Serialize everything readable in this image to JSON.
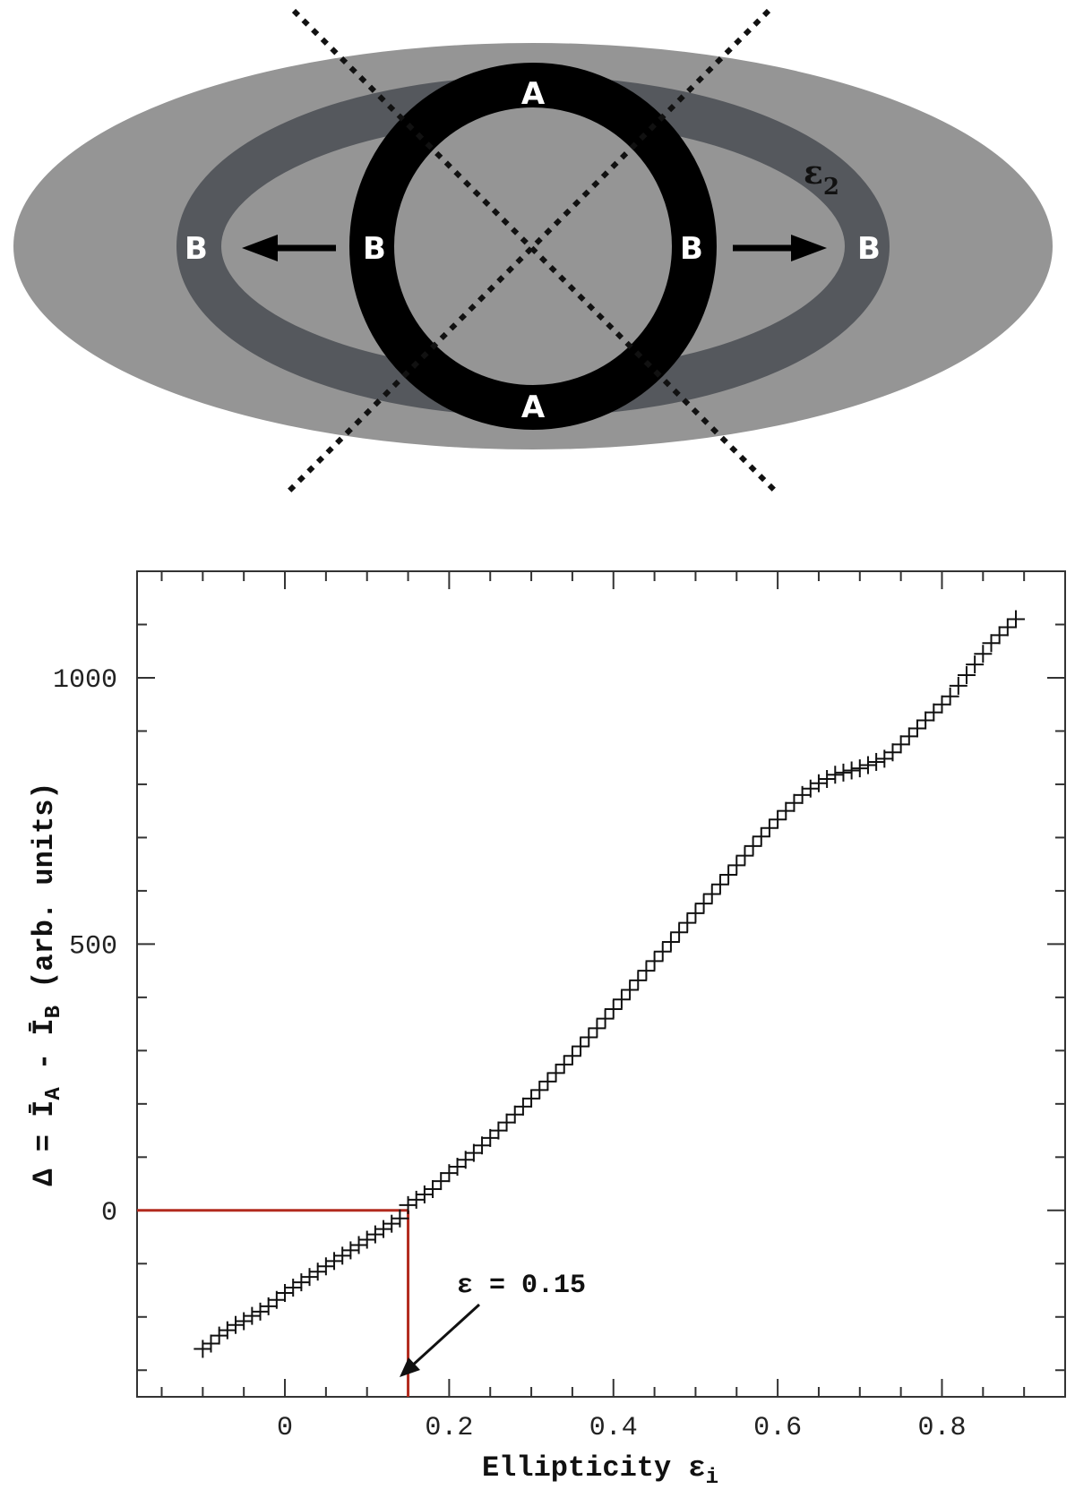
{
  "diagram": {
    "labels": {
      "a_top": "A",
      "a_bottom": "A",
      "b_outer_left": "B",
      "b_inner_left": "B",
      "b_inner_right": "B",
      "b_outer_right": "B",
      "eps": "ε",
      "eps_sub": "2"
    },
    "colors": {
      "outer_ellipse": "#959595",
      "ellipse_band": "#55585d",
      "ring": "#000000",
      "label": "#ffffff"
    }
  },
  "chart_data": {
    "type": "scatter",
    "marker": "plus",
    "xlabel": "Ellipticity ε",
    "xlabel_sub": "i",
    "ylabel_prefix": "Δ = Ī",
    "ylabel_sub1": "A",
    "ylabel_mid": " - Ī",
    "ylabel_sub2": "B",
    "ylabel_suffix": " (arb. units)",
    "xlim": [
      -0.18,
      0.95
    ],
    "ylim": [
      -350,
      1200
    ],
    "xticks": [
      0,
      0.2,
      0.4,
      0.6,
      0.8
    ],
    "xtick_labels": [
      "0",
      "0.2",
      "0.4",
      "0.6",
      "0.8"
    ],
    "yticks": [
      0,
      500,
      1000
    ],
    "ytick_labels": [
      "0",
      "500",
      "1000"
    ],
    "x_minor_step": 0.05,
    "y_minor_step": 100,
    "grid": false,
    "reference_lines": {
      "x": 0.15,
      "y": 0,
      "color": "#b22a1e"
    },
    "annotation": {
      "text": "ε = 0.15",
      "x": 0.15,
      "y": -320
    },
    "x": [
      -0.1,
      -0.09,
      -0.08,
      -0.07,
      -0.06,
      -0.05,
      -0.04,
      -0.03,
      -0.02,
      -0.01,
      0,
      0.01,
      0.02,
      0.03,
      0.04,
      0.05,
      0.06,
      0.07,
      0.08,
      0.09,
      0.1,
      0.11,
      0.12,
      0.13,
      0.14,
      0.15,
      0.16,
      0.17,
      0.18,
      0.19,
      0.2,
      0.21,
      0.22,
      0.23,
      0.24,
      0.25,
      0.26,
      0.27,
      0.28,
      0.29,
      0.3,
      0.31,
      0.32,
      0.33,
      0.34,
      0.35,
      0.36,
      0.37,
      0.38,
      0.39,
      0.4,
      0.41,
      0.42,
      0.43,
      0.44,
      0.45,
      0.46,
      0.47,
      0.48,
      0.49,
      0.5,
      0.51,
      0.52,
      0.53,
      0.54,
      0.55,
      0.56,
      0.57,
      0.58,
      0.59,
      0.6,
      0.61,
      0.62,
      0.63,
      0.64,
      0.65,
      0.66,
      0.67,
      0.68,
      0.69,
      0.7,
      0.71,
      0.72,
      0.73,
      0.74,
      0.75,
      0.76,
      0.77,
      0.78,
      0.79,
      0.8,
      0.81,
      0.82,
      0.83,
      0.84,
      0.85,
      0.86,
      0.87,
      0.88,
      0.89
    ],
    "y": [
      -260,
      -250,
      -235,
      -225,
      -215,
      -208,
      -198,
      -190,
      -180,
      -168,
      -155,
      -145,
      -135,
      -125,
      -115,
      -105,
      -95,
      -85,
      -75,
      -65,
      -55,
      -45,
      -35,
      -25,
      -15,
      10,
      20,
      30,
      40,
      55,
      70,
      82,
      95,
      108,
      122,
      136,
      150,
      165,
      180,
      195,
      210,
      226,
      242,
      258,
      274,
      290,
      308,
      325,
      342,
      360,
      378,
      396,
      414,
      432,
      450,
      468,
      486,
      504,
      522,
      540,
      558,
      576,
      594,
      612,
      630,
      648,
      666,
      684,
      702,
      718,
      734,
      750,
      765,
      780,
      792,
      802,
      810,
      818,
      822,
      826,
      830,
      836,
      842,
      848,
      860,
      875,
      890,
      905,
      920,
      935,
      950,
      965,
      985,
      1005,
      1025,
      1045,
      1065,
      1080,
      1095,
      1110
    ]
  }
}
